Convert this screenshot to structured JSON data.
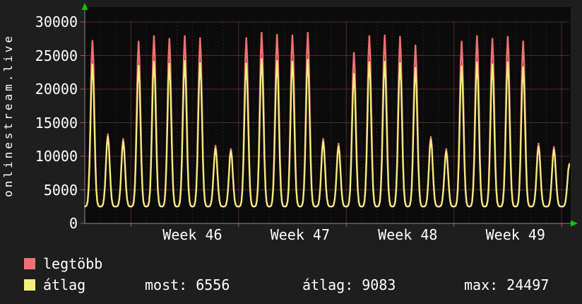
{
  "title_vertical": "onlinestream.live",
  "colors": {
    "background": "#1e1e1e",
    "plot_background": "#0b0b0b",
    "text": "#ffffff",
    "series_max": "#ed7173",
    "series_avg": "#f2ef7c",
    "grid_major": "rgba(175,80,80,0.45)",
    "grid_minor": "rgba(150,150,150,0.18)",
    "axis": "#8a8a8a",
    "tick": "#c05050",
    "arrow": "#00cc00"
  },
  "y_axis": {
    "ticks": [
      0,
      5000,
      10000,
      15000,
      20000,
      25000,
      30000
    ],
    "labels": [
      "0",
      "5000",
      "10000",
      "15000",
      "20000",
      "25000",
      "30000"
    ]
  },
  "x_axis": {
    "week_labels": [
      "Week 46",
      "Week 47",
      "Week 48",
      "Week 49"
    ]
  },
  "legend": [
    {
      "label": "legtöbb",
      "color": "#ed7173"
    },
    {
      "label": "átlag",
      "color": "#f2ef7c"
    }
  ],
  "stats": [
    {
      "label": "most:",
      "value": "6556"
    },
    {
      "label": "átlag:",
      "value": "9083"
    },
    {
      "label": "max:",
      "value": "24497"
    }
  ],
  "chart_data": {
    "type": "line",
    "title": "onlinestream.live",
    "xlabel": "",
    "ylabel": "",
    "ylim": [
      0,
      30000
    ],
    "y_ticks": [
      0,
      5000,
      10000,
      15000,
      20000,
      25000,
      30000
    ],
    "week_labels": [
      "Week 46",
      "Week 47",
      "Week 48",
      "Week 49"
    ],
    "week_center_days": [
      7,
      14,
      21,
      28
    ],
    "week_boundary_days": [
      3,
      10,
      17,
      24,
      31
    ],
    "days_visible": 31.5,
    "baseline": 2500,
    "spike_sigma": 0.17,
    "samples_per_day": 16,
    "grid": true,
    "legend_position": "bottom-left",
    "series": [
      {
        "name": "legtöbb",
        "color": "#ed7173",
        "daily_peaks": [
          27200,
          13300,
          12600,
          27100,
          27900,
          27500,
          27900,
          27600,
          11600,
          11100,
          27600,
          28400,
          28100,
          28000,
          28400,
          12600,
          11900,
          25400,
          27900,
          28000,
          27800,
          26500,
          12900,
          11100,
          27100,
          27900,
          27500,
          27800,
          27100,
          11900,
          11400,
          8900
        ]
      },
      {
        "name": "átlag",
        "color": "#f2ef7c",
        "daily_peaks": [
          23700,
          12900,
          12200,
          23500,
          24100,
          23800,
          24200,
          23900,
          11200,
          10800,
          23800,
          24497,
          24200,
          24100,
          24400,
          12200,
          11500,
          22300,
          24000,
          24100,
          23900,
          23200,
          12500,
          10700,
          23400,
          24000,
          23700,
          24000,
          23300,
          11500,
          11000,
          8700
        ]
      }
    ],
    "summary": {
      "most": 6556,
      "atlag": 9083,
      "max": 24497
    }
  }
}
